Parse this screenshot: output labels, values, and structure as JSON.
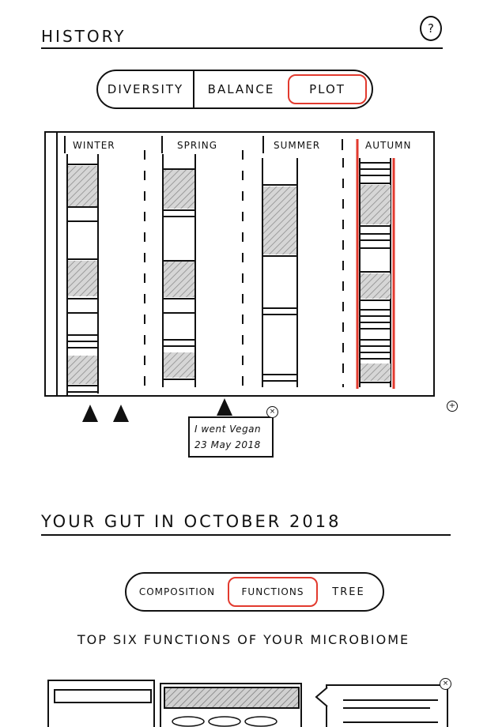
{
  "history": {
    "title": "History",
    "help_label": "?",
    "tabs": [
      {
        "label": "Diversity",
        "active": false
      },
      {
        "label": "Balance",
        "active": false
      },
      {
        "label": "Plot",
        "active": true
      }
    ],
    "seasons": [
      {
        "label": "Winter",
        "selected": false
      },
      {
        "label": "Spring",
        "selected": false
      },
      {
        "label": "Summer",
        "selected": false
      },
      {
        "label": "Autumn",
        "selected": true
      }
    ],
    "zoom_label": "+",
    "note": {
      "line1": "I went Vegan",
      "line2": "23 May 2018",
      "close_label": "×"
    }
  },
  "gut": {
    "title": "Your gut in October 2018",
    "tabs": [
      {
        "label": "Composition",
        "active": false
      },
      {
        "label": "Functions",
        "active": true
      },
      {
        "label": "Tree",
        "active": false
      }
    ],
    "subtitle": "Top six functions of your microbiome",
    "close_label": "×"
  },
  "colors": {
    "accent": "#e23a2e",
    "ink": "#111111"
  }
}
